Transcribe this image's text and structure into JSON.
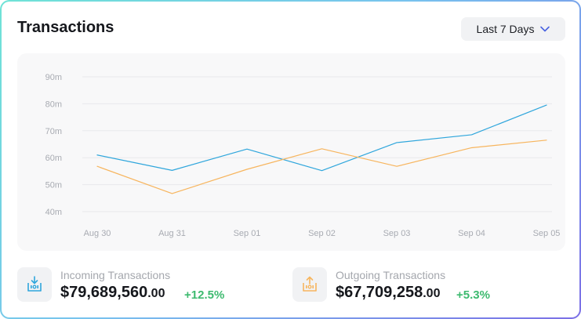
{
  "card": {
    "title": "Transactions",
    "range_label": "Last 7 Days"
  },
  "chart_data": {
    "type": "line",
    "x": [
      "Aug 30",
      "Aug 31",
      "Sep 01",
      "Sep 02",
      "Sep 03",
      "Sep 04",
      "Sep 05"
    ],
    "y_ticks": [
      "90m",
      "80m",
      "70m",
      "60m",
      "50m",
      "40m"
    ],
    "ylim": [
      40,
      90
    ],
    "grid": true,
    "legend": "none",
    "series": [
      {
        "values": [
          61,
          55.3,
          63.2,
          55.2,
          65.6,
          68.5,
          79.5
        ],
        "color": "#2fa6dc"
      },
      {
        "values": [
          56.8,
          46.7,
          55.7,
          63.3,
          56.8,
          63.7,
          66.5
        ],
        "color": "#f7b55e"
      }
    ]
  },
  "stats": {
    "incoming": {
      "label": "Incoming Transactions",
      "amount": "$79,689,560",
      "decimals": ".00",
      "change": "+12.5%",
      "icon": "incoming-tray-icon",
      "color": "#2fa6dc"
    },
    "outgoing": {
      "label": "Outgoing Transactions",
      "amount": "$67,709,258",
      "decimals": ".00",
      "change": "+5.3%",
      "icon": "outgoing-tray-icon",
      "color": "#f7b55e"
    }
  }
}
